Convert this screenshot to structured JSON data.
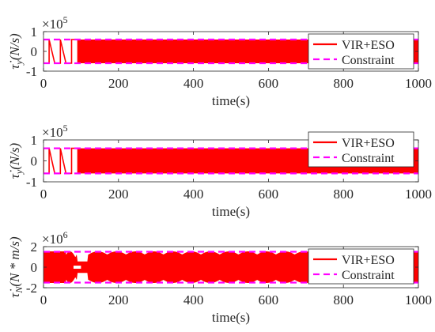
{
  "chart_data": [
    {
      "type": "line",
      "ylabel": "τ̇_y (N/s)",
      "ylabel_parts": {
        "sym": "τ̇",
        "sub": "y",
        "unit": "(N/s)"
      },
      "xlabel": "time(s)",
      "exponent_base": "×10",
      "exponent_power": "5",
      "xlim": [
        0,
        1000
      ],
      "ylim": [
        -1,
        1
      ],
      "xticks": [
        "0",
        "200",
        "400",
        "600",
        "800",
        "1000"
      ],
      "yticks": [
        "-1",
        "0",
        "1"
      ],
      "constraint": [
        -0.6,
        0.6
      ],
      "signal": {
        "sat_from": 90,
        "amp": 0.6,
        "early_pulses": [
          [
            0,
            15
          ],
          [
            30,
            45
          ],
          [
            60,
            75
          ]
        ]
      },
      "legend_position": "right",
      "series": [
        {
          "name": "VIR+ESO",
          "color": "#ff0000",
          "style": "solid"
        },
        {
          "name": "Constraint",
          "color": "#ff00ff",
          "style": "dashed"
        }
      ],
      "grid": false
    },
    {
      "type": "line",
      "ylabel": "τ̇_y (N/s)",
      "ylabel_parts": {
        "sym": "τ̇",
        "sub": "y",
        "unit": "(N/s)"
      },
      "xlabel": "time(s)",
      "exponent_base": "×10",
      "exponent_power": "5",
      "xlim": [
        0,
        1000
      ],
      "ylim": [
        -1,
        1
      ],
      "xticks": [
        "0",
        "200",
        "400",
        "600",
        "800",
        "1000"
      ],
      "yticks": [
        "-1",
        "0",
        "1"
      ],
      "constraint": [
        -0.6,
        0.6
      ],
      "signal": {
        "sat_from": 90,
        "amp": 0.6,
        "early_pulses": [
          [
            0,
            15
          ],
          [
            30,
            45
          ],
          [
            60,
            75
          ]
        ]
      },
      "legend_position": "top-right",
      "series": [
        {
          "name": "VIR+ESO",
          "color": "#ff0000",
          "style": "solid"
        },
        {
          "name": "Constraint",
          "color": "#ff00ff",
          "style": "dashed"
        }
      ],
      "grid": false
    },
    {
      "type": "line",
      "ylabel": "τ̇_N (N*m/s)",
      "ylabel_parts": {
        "sym": "τ̇",
        "sub": "N",
        "unit": "(N * m/s)"
      },
      "xlabel": "time(s)",
      "exponent_base": "×10",
      "exponent_power": "6",
      "xlim": [
        0,
        1000
      ],
      "ylim": [
        -2,
        2
      ],
      "xticks": [
        "0",
        "200",
        "400",
        "600",
        "800",
        "1000"
      ],
      "yticks": [
        "-2",
        "0",
        "2"
      ],
      "constraint": [
        -1.5,
        1.5
      ],
      "signal": {
        "sat_from": 700,
        "amp": 1.5,
        "envelope_low": 0.8,
        "burst_period": 50
      },
      "legend_position": "right",
      "series": [
        {
          "name": "VIR+ESO",
          "color": "#ff0000",
          "style": "solid"
        },
        {
          "name": "Constraint",
          "color": "#ff00ff",
          "style": "dashed"
        }
      ],
      "grid": false
    }
  ]
}
